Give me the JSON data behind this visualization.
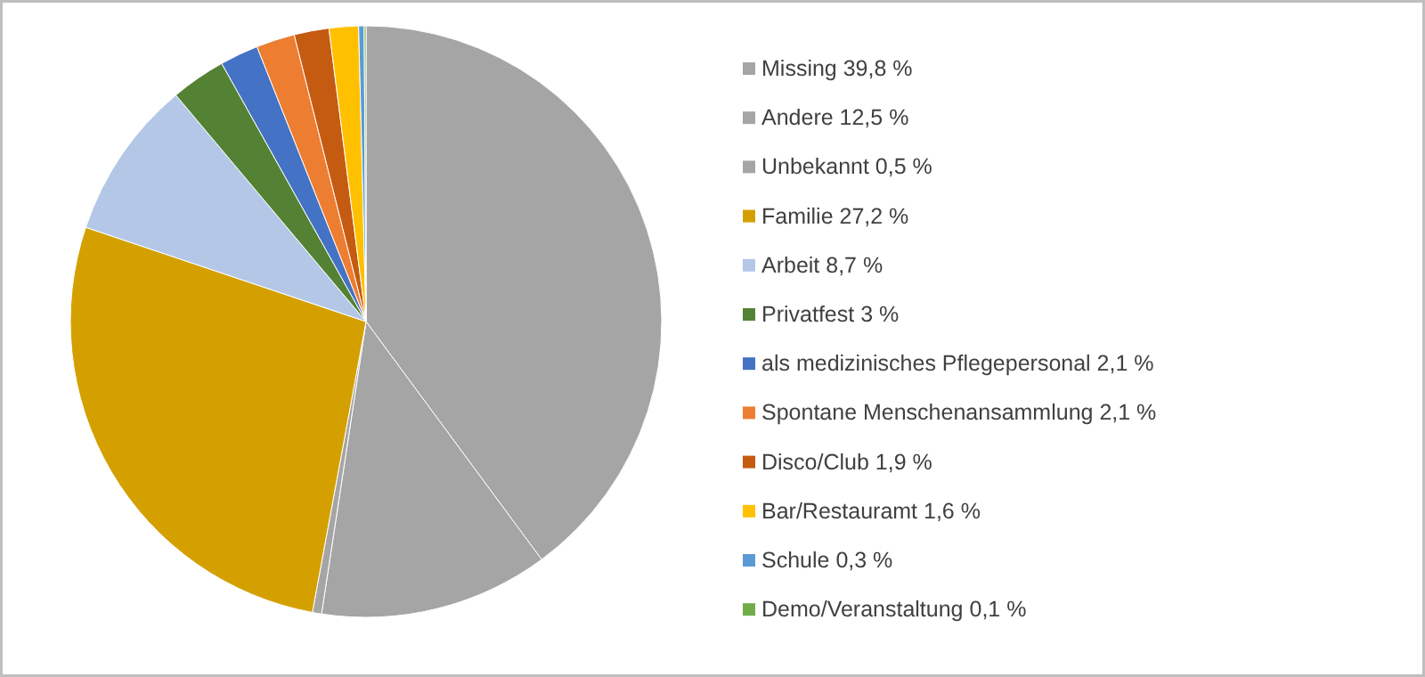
{
  "chart_data": {
    "type": "pie",
    "categories": [
      "Missing",
      "Andere",
      "Unbekannt",
      "Familie",
      "Arbeit",
      "Privatfest",
      "als medizinisches Pflegepersonal",
      "Spontane Menschenansammlung",
      "Disco/Club",
      "Bar/Restauramt",
      "Schule",
      "Demo/Veranstaltung"
    ],
    "values": [
      39.8,
      12.5,
      0.5,
      27.2,
      8.7,
      3,
      2.1,
      2.1,
      1.9,
      1.6,
      0.3,
      0.1
    ],
    "value_labels": [
      "39,8 %",
      "12,5 %",
      "0,5 %",
      "27,2 %",
      "8,7 %",
      "3 %",
      "2,1  %",
      "2,1 %",
      "1,9 %",
      "1,6 %",
      "0,3  %",
      "0,1 %"
    ],
    "colors": [
      "#a5a5a5",
      "#a5a5a5",
      "#a5a5a5",
      "#d4a000",
      "#b4c7e7",
      "#548235",
      "#4472c4",
      "#ed7d31",
      "#c55a11",
      "#ffc000",
      "#5b9bd5",
      "#70ad47"
    ],
    "legend": "right"
  }
}
